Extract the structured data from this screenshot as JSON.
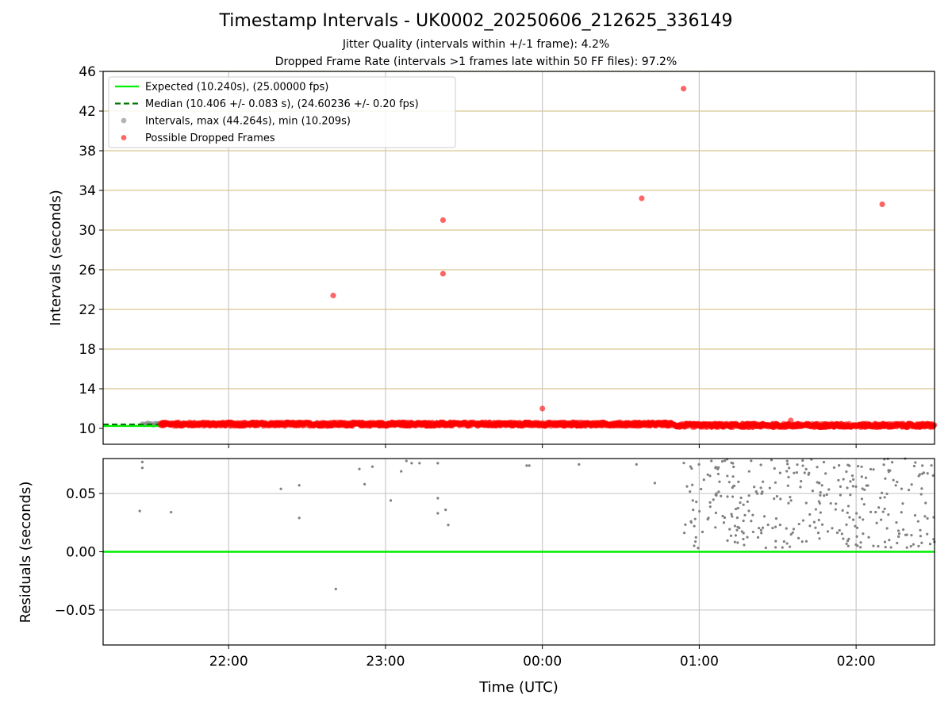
{
  "titles": {
    "main": "Timestamp Intervals - UK0002_20250606_212625_336149",
    "sub1": "Jitter Quality (intervals within +/-1 frame): 4.2%",
    "sub2": "Dropped Frame Rate (intervals >1 frames late within 50 FF files): 97.2%"
  },
  "colors": {
    "expected": "#00ee00",
    "median": "#007700",
    "intervals": "#808080",
    "dropped": "#ff0000",
    "hgrid_top": "#d6c690",
    "grid": "#c8c8c8"
  },
  "chart_data": [
    {
      "type": "scatter",
      "panel": "intervals",
      "ylabel": "Intervals (seconds)",
      "xlabel": "",
      "ylim": [
        8.4,
        46
      ],
      "xlim": [
        "21:12",
        "02:30"
      ],
      "yticks": [
        "10",
        "14",
        "18",
        "22",
        "26",
        "30",
        "34",
        "38",
        "42",
        "46"
      ],
      "grid": true,
      "legend_position": "top-left",
      "legend": [
        {
          "label": "Expected (10.240s), (25.00000 fps)",
          "kind": "solid-line",
          "color": "#00ee00"
        },
        {
          "label": "Median (10.406 +/- 0.083 s), (24.60236 +/- 0.20 fps)",
          "kind": "dashed-line",
          "color": "#007700"
        },
        {
          "label": "Intervals, max (44.264s), min (10.209s)",
          "kind": "dot",
          "color": "#808080"
        },
        {
          "label": "Possible Dropped Frames",
          "kind": "dot",
          "color": "#ff0000"
        }
      ],
      "reference_lines": [
        {
          "name": "Expected",
          "y": 10.24,
          "x_range": [
            "21:12",
            "21:34"
          ]
        },
        {
          "name": "Median",
          "y": 10.406,
          "x_range": [
            "21:12",
            "21:34"
          ]
        }
      ],
      "series": [
        {
          "name": "Possible Dropped Frames",
          "points": [
            {
              "x": "22:40",
              "y": 23.4
            },
            {
              "x": "23:22",
              "y": 25.6
            },
            {
              "x": "23:22",
              "y": 31.0
            },
            {
              "x": "00:00",
              "y": 12.0
            },
            {
              "x": "00:38",
              "y": 33.2
            },
            {
              "x": "00:54",
              "y": 44.26
            },
            {
              "x": "01:35",
              "y": 10.8
            },
            {
              "x": "02:10",
              "y": 32.6
            }
          ],
          "band": {
            "x_range": [
              "21:34",
              "02:30"
            ],
            "y_before_0050": 10.43,
            "y_after_0050": 10.3,
            "density_per_min": 6
          }
        },
        {
          "name": "Intervals",
          "band": {
            "x_range": [
              "21:27",
              "21:36"
            ],
            "y": 10.42
          }
        }
      ]
    },
    {
      "type": "scatter",
      "panel": "residuals",
      "ylabel": "Residuals (seconds)",
      "xlabel": "Time (UTC)",
      "ylim": [
        -0.08,
        0.08
      ],
      "yticks": [
        "−0.05",
        "0.00",
        "0.05"
      ],
      "xticks": [
        "22:00",
        "23:00",
        "00:00",
        "01:00",
        "02:00"
      ],
      "xlim": [
        "21:12",
        "02:30"
      ],
      "grid": true,
      "reference_line": {
        "name": "Expected",
        "y": 0.0
      },
      "points": [
        {
          "x": "21:27",
          "y": 0.077
        },
        {
          "x": "21:27",
          "y": 0.072
        },
        {
          "x": "21:26",
          "y": 0.035
        },
        {
          "x": "21:38",
          "y": 0.034
        },
        {
          "x": "22:20",
          "y": 0.054
        },
        {
          "x": "22:27",
          "y": 0.057
        },
        {
          "x": "22:27",
          "y": 0.029
        },
        {
          "x": "22:41",
          "y": -0.032
        },
        {
          "x": "22:50",
          "y": 0.071
        },
        {
          "x": "22:52",
          "y": 0.058
        },
        {
          "x": "22:55",
          "y": 0.073
        },
        {
          "x": "23:02",
          "y": 0.044
        },
        {
          "x": "23:06",
          "y": 0.069
        },
        {
          "x": "23:08",
          "y": 0.078
        },
        {
          "x": "23:10",
          "y": 0.076
        },
        {
          "x": "23:13",
          "y": 0.076
        },
        {
          "x": "23:20",
          "y": 0.076
        },
        {
          "x": "23:20",
          "y": 0.046
        },
        {
          "x": "23:20",
          "y": 0.033
        },
        {
          "x": "23:23",
          "y": 0.036
        },
        {
          "x": "23:24",
          "y": 0.023
        },
        {
          "x": "23:54",
          "y": 0.074
        },
        {
          "x": "23:55",
          "y": 0.074
        },
        {
          "x": "00:14",
          "y": 0.075
        },
        {
          "x": "00:36",
          "y": 0.075
        },
        {
          "x": "00:43",
          "y": 0.059
        }
      ],
      "dense_cloud": {
        "x_range": [
          "00:54",
          "02:30"
        ],
        "y_range": [
          0.0,
          0.08
        ],
        "count": 320
      }
    }
  ]
}
